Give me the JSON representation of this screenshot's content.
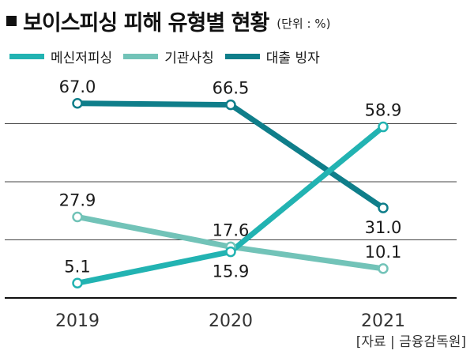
{
  "title": "보이스피싱 피해 유형별 현황",
  "unit": "(단위 : %)",
  "source": "[자료 | 금융감독원]",
  "colors": {
    "series_1": "#22b3b2",
    "series_2": "#72c3b8",
    "series_3": "#0f7e8a",
    "grid": "#444444",
    "label": "#1a1a1a"
  },
  "chart_data": {
    "type": "line",
    "title": "보이스피싱 피해 유형별 현황",
    "unit": "%",
    "xlabel": "",
    "ylabel": "",
    "ylim": [
      0,
      80
    ],
    "grid": true,
    "legend_position": "top-left",
    "categories": [
      "2019",
      "2020",
      "2021"
    ],
    "series": [
      {
        "name": "메신저피싱",
        "values": [
          5.1,
          15.9,
          58.9
        ],
        "value_labels": [
          "5.1",
          "15.9",
          "58.9"
        ]
      },
      {
        "name": "기관사칭",
        "values": [
          27.9,
          17.6,
          10.1
        ],
        "value_labels": [
          "27.9",
          "17.6",
          "10.1"
        ]
      },
      {
        "name": "대출 빙자",
        "values": [
          67.0,
          66.5,
          31.0
        ],
        "value_labels": [
          "67.0",
          "66.5",
          "31.0"
        ]
      }
    ]
  }
}
